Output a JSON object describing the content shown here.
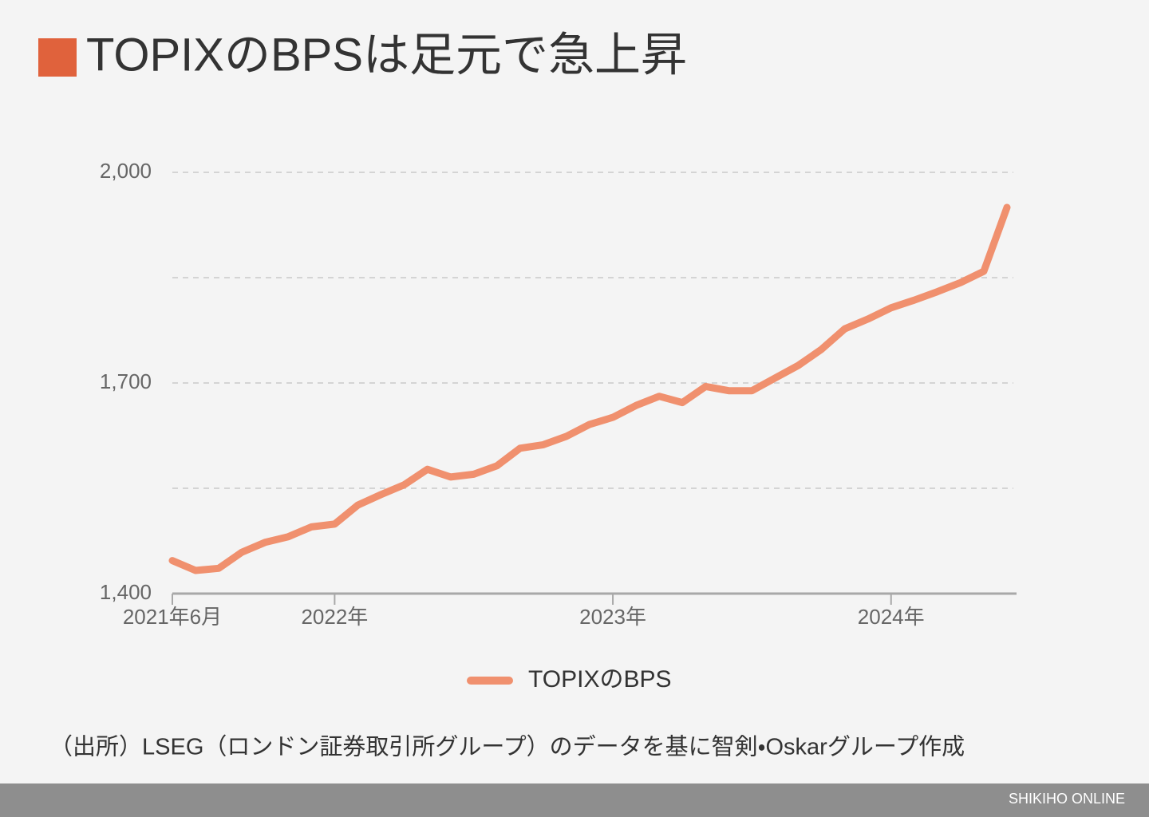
{
  "chart_data": {
    "type": "line",
    "title": "TOPIXのBPSは足元で急上昇",
    "source": "（出所）LSEG（ロンドン証券取引所グループ）のデータを基に智剣・Oskarグループ作成",
    "footer": "SHIKIHO ONLINE",
    "x": [
      "2021-06",
      "2021-07",
      "2021-08",
      "2021-09",
      "2021-10",
      "2021-11",
      "2021-12",
      "2022-01",
      "2022-02",
      "2022-03",
      "2022-04",
      "2022-05",
      "2022-06",
      "2022-07",
      "2022-08",
      "2022-09",
      "2022-10",
      "2022-11",
      "2022-12",
      "2023-01",
      "2023-02",
      "2023-03",
      "2023-04",
      "2023-05",
      "2023-06",
      "2023-07",
      "2023-08",
      "2023-09",
      "2023-10",
      "2023-11",
      "2023-12",
      "2024-01",
      "2024-02",
      "2024-03",
      "2024-04",
      "2024-05",
      "2024-06"
    ],
    "series": [
      {
        "name": "TOPIXのBPS",
        "color": "#f0906e",
        "values": [
          1447,
          1433,
          1436,
          1459,
          1473,
          1481,
          1495,
          1499,
          1526,
          1541,
          1555,
          1577,
          1566,
          1570,
          1582,
          1607,
          1612,
          1624,
          1641,
          1651,
          1668,
          1681,
          1672,
          1695,
          1689,
          1689,
          1707,
          1725,
          1748,
          1777,
          1791,
          1807,
          1818,
          1830,
          1843,
          1859,
          1950
        ]
      }
    ],
    "xlim": [
      "2021-06",
      "2024-06"
    ],
    "xticks": [
      {
        "value": "2021-06",
        "label": "2021年6月"
      },
      {
        "value": "2022-01",
        "label": "2022年"
      },
      {
        "value": "2023-01",
        "label": "2023年"
      },
      {
        "value": "2024-01",
        "label": "2024年"
      }
    ],
    "ylim": [
      1400,
      2000
    ],
    "yticks": [
      {
        "value": 1400,
        "label": "1,400"
      },
      {
        "value": 1550,
        "label": null
      },
      {
        "value": 1700,
        "label": "1,700"
      },
      {
        "value": 1850,
        "label": null
      },
      {
        "value": 2000,
        "label": "2,000"
      }
    ],
    "grid": true,
    "legend": "bottom"
  }
}
